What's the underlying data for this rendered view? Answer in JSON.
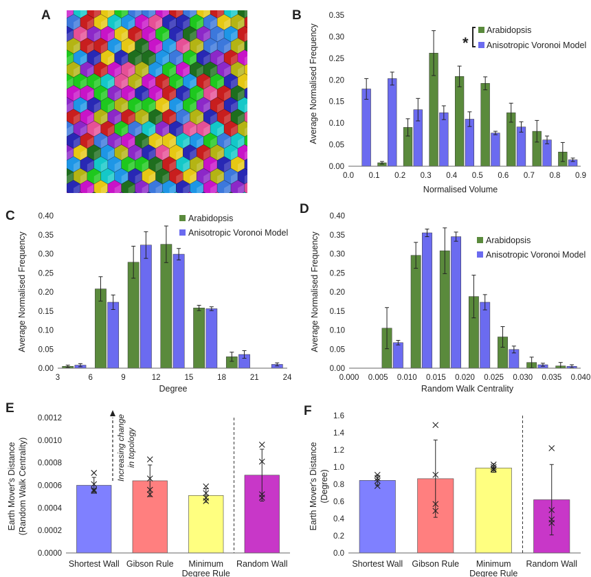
{
  "colors": {
    "arabidopsis": "#5a8a3c",
    "voronoi": "#6b6bf0",
    "shortest_wall": "#7f80ff",
    "gibson_rule": "#ff7f7f",
    "minimum_degree": "#ffff80",
    "random_wall": "#c837c8",
    "hex_palette": [
      "#1ec81e",
      "#c814c8",
      "#e6c814",
      "#1e96e6",
      "#2828b4",
      "#c81e1e",
      "#14c8c8",
      "#8c28c8",
      "#1e6e1e",
      "#e65096",
      "#b4b414",
      "#3c78dc"
    ]
  },
  "panels": [
    {
      "label": "A"
    },
    {
      "label": "B",
      "note": "*"
    },
    {
      "label": "C"
    },
    {
      "label": "D"
    },
    {
      "label": "E",
      "annotation": [
        "Increasing change",
        "in topology"
      ]
    },
    {
      "label": "F"
    }
  ],
  "chart_data": [
    {
      "id": "B",
      "type": "bar",
      "xlabel": "Normalised Volume",
      "ylabel": "Average Normalised Frequency",
      "xlim": [
        0.0,
        0.9
      ],
      "ylim": [
        0.0,
        0.35
      ],
      "x_ticks": [
        "0.0",
        "0.1",
        "0.2",
        "0.3",
        "0.4",
        "0.5",
        "0.6",
        "0.7",
        "0.8",
        "0.9"
      ],
      "y_ticks": [
        "0.00",
        "0.05",
        "0.10",
        "0.15",
        "0.20",
        "0.25",
        "0.30",
        "0.35"
      ],
      "legend": "top-right",
      "x": [
        0.05,
        0.15,
        0.25,
        0.35,
        0.45,
        0.55,
        0.65,
        0.75,
        0.85
      ],
      "series": [
        {
          "name": "Arabidopsis",
          "values": [
            0.0,
            0.008,
            0.09,
            0.262,
            0.208,
            0.192,
            0.124,
            0.081,
            0.033
          ],
          "errors": [
            0.0,
            0.003,
            0.02,
            0.052,
            0.024,
            0.015,
            0.022,
            0.025,
            0.022
          ]
        },
        {
          "name": "Anisotropic Voronoi Model",
          "values": [
            0.179,
            0.203,
            0.131,
            0.124,
            0.109,
            0.077,
            0.091,
            0.061,
            0.015
          ],
          "errors": [
            0.024,
            0.015,
            0.026,
            0.016,
            0.017,
            0.004,
            0.012,
            0.009,
            0.004
          ]
        }
      ]
    },
    {
      "id": "C",
      "type": "bar",
      "xlabel": "Degree",
      "ylabel": "Average Normalised Frequency",
      "xlim": [
        3,
        24
      ],
      "ylim": [
        0.0,
        0.4
      ],
      "x_ticks": [
        "3",
        "6",
        "9",
        "12",
        "15",
        "18",
        "21",
        "24"
      ],
      "y_ticks": [
        "0.00",
        "0.05",
        "0.10",
        "0.15",
        "0.20",
        "0.25",
        "0.30",
        "0.35",
        "0.40"
      ],
      "legend": "top-right",
      "x": [
        4.5,
        7.5,
        10.5,
        13.5,
        16.5,
        19.5,
        22.5
      ],
      "series": [
        {
          "name": "Arabidopsis",
          "values": [
            0.005,
            0.208,
            0.278,
            0.325,
            0.158,
            0.03,
            0.0
          ],
          "errors": [
            0.003,
            0.032,
            0.042,
            0.048,
            0.007,
            0.012,
            0.0
          ]
        },
        {
          "name": "Anisotropic Voronoi Model",
          "values": [
            0.008,
            0.173,
            0.323,
            0.299,
            0.156,
            0.036,
            0.01
          ],
          "errors": [
            0.004,
            0.019,
            0.035,
            0.015,
            0.005,
            0.01,
            0.004
          ]
        }
      ]
    },
    {
      "id": "D",
      "type": "bar",
      "xlabel": "Random Walk Centrality",
      "ylabel": "Average Normalised Frequency",
      "xlim": [
        0.0,
        0.04
      ],
      "ylim": [
        0.0,
        0.4
      ],
      "x_ticks": [
        "0.000",
        "0.005",
        "0.010",
        "0.015",
        "0.020",
        "0.025",
        "0.030",
        "0.035",
        "0.040"
      ],
      "y_ticks": [
        "0.00",
        "0.05",
        "0.10",
        "0.15",
        "0.20",
        "0.25",
        "0.30",
        "0.35",
        "0.40"
      ],
      "legend": "top-right",
      "x": [
        0.0075,
        0.0125,
        0.0175,
        0.0225,
        0.0275,
        0.0325,
        0.0375
      ],
      "series": [
        {
          "name": "Arabidopsis",
          "values": [
            0.105,
            0.296,
            0.308,
            0.188,
            0.082,
            0.015,
            0.006
          ],
          "errors": [
            0.054,
            0.034,
            0.06,
            0.056,
            0.027,
            0.014,
            0.009
          ]
        },
        {
          "name": "Anisotropic Voronoi Model",
          "values": [
            0.067,
            0.355,
            0.345,
            0.173,
            0.049,
            0.009,
            0.005
          ],
          "errors": [
            0.006,
            0.01,
            0.012,
            0.02,
            0.009,
            0.004,
            0.004
          ]
        }
      ]
    },
    {
      "id": "E",
      "type": "bar",
      "ylabel": [
        "Earth Mover's Distance",
        "(Random Walk Centrality)"
      ],
      "ylim": [
        0.0,
        0.0012
      ],
      "y_ticks": [
        "0.0000",
        "0.0002",
        "0.0004",
        "0.0006",
        "0.0008",
        "0.0010",
        "0.0012"
      ],
      "categories": [
        [
          "Shortest Wall"
        ],
        [
          "Gibson Rule"
        ],
        [
          "Minimum",
          "Degree Rule"
        ],
        [
          "Random Wall"
        ]
      ],
      "values": [
        0.0006,
        0.00064,
        0.00051,
        0.00069
      ],
      "errors": [
        7e-05,
        0.00014,
        6e-05,
        0.00023
      ],
      "points": [
        [
          0.00071,
          0.00061,
          0.00055,
          0.00056
        ],
        [
          0.00083,
          0.00066,
          0.00056,
          0.00052
        ],
        [
          0.00059,
          0.00053,
          0.00049,
          0.00046
        ],
        [
          0.00096,
          0.00081,
          0.00052,
          0.00049
        ]
      ],
      "divider_after": 3
    },
    {
      "id": "F",
      "type": "bar",
      "ylabel": [
        "Earth Mover's Distance",
        "(Degree)"
      ],
      "ylim": [
        0.0,
        1.6
      ],
      "y_ticks": [
        "0.0",
        "0.2",
        "0.4",
        "0.6",
        "0.8",
        "1.0",
        "1.2",
        "1.4",
        "1.6"
      ],
      "categories": [
        [
          "Shortest Wall"
        ],
        [
          "Gibson Rule"
        ],
        [
          "Minimum",
          "Degree Rule"
        ],
        [
          "Random Wall"
        ]
      ],
      "values": [
        0.845,
        0.865,
        0.99,
        0.62
      ],
      "errors": [
        0.06,
        0.45,
        0.05,
        0.41
      ],
      "points": [
        [
          0.91,
          0.87,
          0.84,
          0.78
        ],
        [
          1.49,
          0.91,
          0.57,
          0.49
        ],
        [
          1.03,
          1.0,
          0.98,
          0.97
        ],
        [
          1.22,
          0.5,
          0.39,
          0.35
        ]
      ],
      "divider_after": 3
    }
  ]
}
